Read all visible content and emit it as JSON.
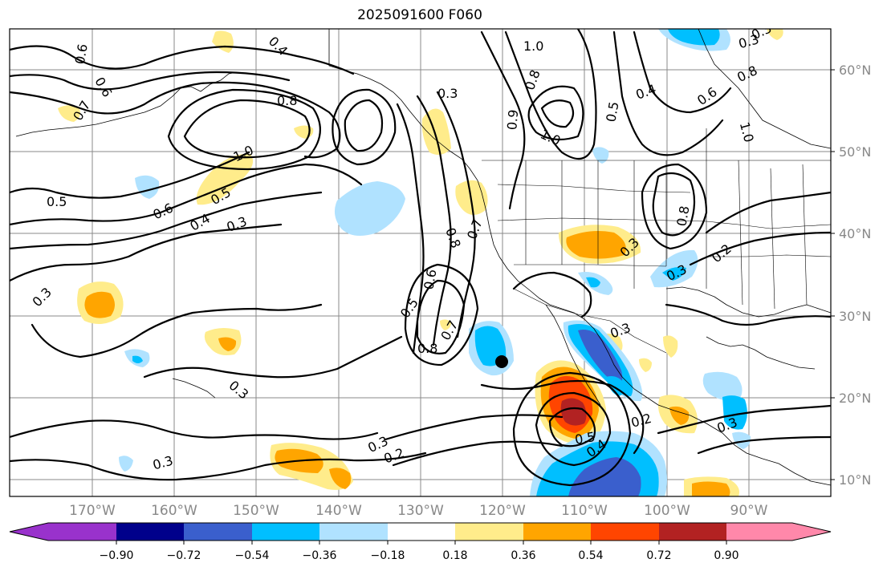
{
  "title": "2025091600 F060",
  "map": {
    "lat_labels": [
      "60°N",
      "50°N",
      "40°N",
      "30°N",
      "20°N",
      "10°N"
    ],
    "lon_labels": [
      "170°W",
      "160°W",
      "150°W",
      "140°W",
      "130°W",
      "120°W",
      "110°W",
      "100°W",
      "90°W"
    ],
    "contour_labels": [
      "0.6",
      "0.6",
      "0.7",
      "0.4",
      "0.8",
      "1.0",
      "0.5",
      "0.6",
      "0.4",
      "0.5",
      "0.3",
      "0.3",
      "1.0",
      "0.8",
      "0.9",
      "1.0",
      "0.5",
      "0.4",
      "0.6",
      "0.8",
      "1.0",
      "0.3",
      "0.8",
      "0.7",
      "0.6",
      "0.5",
      "0.8",
      "0.7",
      "0.3",
      "0.8",
      "0.3",
      "0.2",
      "0.3",
      "0.3",
      "0.3",
      "0.3",
      "0.2",
      "0.5",
      "0.4",
      "0.2",
      "0.3",
      "0.3",
      "0.3"
    ],
    "marker": "filled-circle",
    "colors": {
      "land_outline": "#000000",
      "grid": "#8a8a8a",
      "contour": "#000000"
    }
  },
  "colorbar": {
    "tick_labels": [
      "−0.90",
      "−0.72",
      "−0.54",
      "−0.36",
      "−0.18",
      "0.18",
      "0.36",
      "0.54",
      "0.72",
      "0.90"
    ],
    "colors": [
      "#9932cc",
      "#00008b",
      "#3a5fcd",
      "#00bfff",
      "#b0e2ff",
      "#ffffff",
      "#ffec8b",
      "#ffa500",
      "#ff4500",
      "#b22222",
      "#ff88aa"
    ]
  }
}
